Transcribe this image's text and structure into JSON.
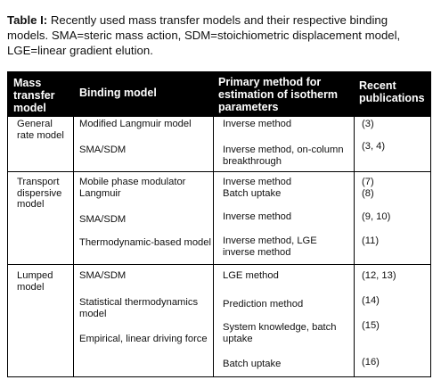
{
  "caption": {
    "label": "Table I:",
    "text": " Recently used mass transfer models and their respective binding models. SMA=steric mass action, SDM=stoichiometric displacement model, LGE=linear gradient elution."
  },
  "header": {
    "col1": [
      "Mass",
      "transfer",
      "model"
    ],
    "col2": "Binding model",
    "col3": [
      "Primary method for",
      "estimation of isotherm",
      "parameters"
    ],
    "col4": [
      "Recent",
      "publications"
    ]
  },
  "groups": [
    {
      "model": [
        "General",
        "rate model"
      ],
      "rows": [
        {
          "binding": [
            "Modified Langmuir model"
          ],
          "method": [
            "Inverse method"
          ],
          "pubs": "(3)"
        },
        {
          "binding": [
            "SMA/SDM"
          ],
          "method": [
            "Inverse method, on-column",
            "breakthrough"
          ],
          "pubs": "(3, 4)"
        }
      ]
    },
    {
      "model": [
        "Transport",
        "dispersive",
        "model"
      ],
      "rows": [
        {
          "binding": [
            "Mobile phase modulator",
            "Langmuir"
          ],
          "method": [
            "Inverse method",
            "Batch uptake"
          ],
          "pubs": "(7)\n(8)"
        },
        {
          "binding": [
            "SMA/SDM"
          ],
          "method": [
            "Inverse method"
          ],
          "pubs": "(9, 10)"
        },
        {
          "binding": [
            "Thermodynamic-based model"
          ],
          "method": [
            "Inverse method, LGE",
            "inverse method"
          ],
          "pubs": "(11)"
        }
      ]
    },
    {
      "model": [
        "Lumped",
        "model"
      ],
      "rows": [
        {
          "binding": [
            "SMA/SDM"
          ],
          "method": [
            "LGE method"
          ],
          "pubs": "(12, 13)"
        },
        {
          "binding": [
            "Statistical thermodynamics",
            "model"
          ],
          "method": [
            "Prediction method"
          ],
          "pubs": "(14)"
        },
        {
          "binding": [
            "Empirical, linear driving force"
          ],
          "method": [
            "System knowledge, batch",
            "uptake"
          ],
          "pubs": "(15)"
        },
        {
          "binding": [],
          "method": [
            "Batch uptake"
          ],
          "pubs": "(16)"
        }
      ]
    }
  ]
}
